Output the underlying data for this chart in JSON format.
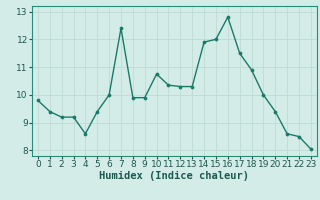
{
  "x": [
    0,
    1,
    2,
    3,
    4,
    5,
    6,
    7,
    8,
    9,
    10,
    11,
    12,
    13,
    14,
    15,
    16,
    17,
    18,
    19,
    20,
    21,
    22,
    23
  ],
  "y": [
    9.8,
    9.4,
    9.2,
    9.2,
    8.6,
    9.4,
    10.0,
    12.4,
    9.9,
    9.9,
    10.75,
    10.35,
    10.3,
    10.3,
    11.9,
    12.0,
    12.8,
    11.5,
    10.9,
    10.0,
    9.4,
    8.6,
    8.5,
    8.05
  ],
  "line_color": "#1a7a6a",
  "marker": "o",
  "marker_size": 2.2,
  "line_width": 1.0,
  "xlabel": "Humidex (Indice chaleur)",
  "xlabel_fontsize": 7.5,
  "xlim": [
    -0.5,
    23.5
  ],
  "ylim": [
    7.8,
    13.2
  ],
  "yticks": [
    8,
    9,
    10,
    11,
    12,
    13
  ],
  "xticks": [
    0,
    1,
    2,
    3,
    4,
    5,
    6,
    7,
    8,
    9,
    10,
    11,
    12,
    13,
    14,
    15,
    16,
    17,
    18,
    19,
    20,
    21,
    22,
    23
  ],
  "grid_color": "#c0ddd6",
  "bg_color": "#d4ece7",
  "tick_fontsize": 6.5,
  "spine_color": "#2a8a7a"
}
